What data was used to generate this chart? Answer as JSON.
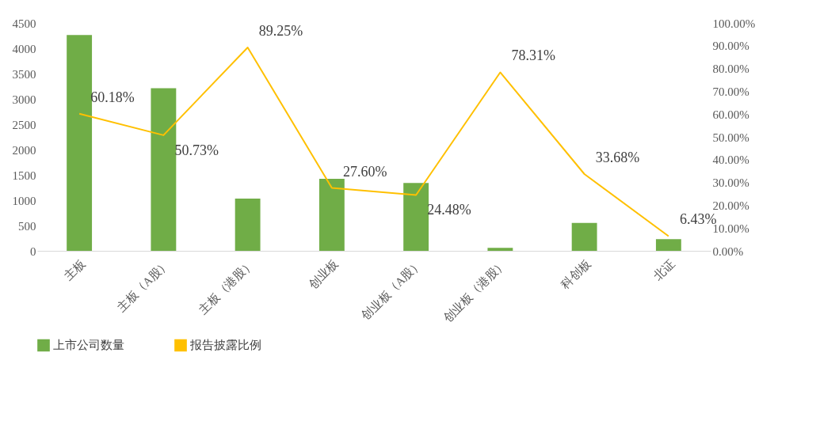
{
  "chart_data": {
    "type": "bar",
    "categories": [
      "主板",
      "主板（A股）",
      "主板（港股）",
      "创业板",
      "创业板（A股）",
      "创业板（港股）",
      "科创板",
      "北证"
    ],
    "series": [
      {
        "name": "上市公司数量",
        "color": "#70ad47",
        "values": [
          4260,
          3210,
          1030,
          1420,
          1340,
          60,
          550,
          230
        ]
      },
      {
        "name": "报告披露比例",
        "type": "line",
        "axis": "y2",
        "color": "#ffc000",
        "values": [
          60.18,
          50.73,
          89.25,
          27.6,
          24.48,
          78.31,
          33.68,
          6.43
        ],
        "value_labels": [
          "60.18%",
          "50.73%",
          "89.25%",
          "27.60%",
          "24.48%",
          "78.31%",
          "33.68%",
          "6.43%"
        ]
      }
    ],
    "ylim": [
      0,
      4500
    ],
    "yticks": [
      0,
      500,
      1000,
      1500,
      2000,
      2500,
      3000,
      3500,
      4000,
      4500
    ],
    "y2lim": [
      0,
      100
    ],
    "y2ticks": [
      {
        "value": 0,
        "label": "0.00%"
      },
      {
        "value": 10,
        "label": "10.00%"
      },
      {
        "value": 20,
        "label": "20.00%"
      },
      {
        "value": 30,
        "label": "30.00%"
      },
      {
        "value": 40,
        "label": "40.00%"
      },
      {
        "value": 50,
        "label": "50.00%"
      },
      {
        "value": 60,
        "label": "60.00%"
      },
      {
        "value": 70,
        "label": "70.00%"
      },
      {
        "value": 80,
        "label": "80.00%"
      },
      {
        "value": 90,
        "label": "90.00%"
      },
      {
        "value": 100,
        "label": "100.00%"
      }
    ],
    "grid": false,
    "legend": "bottom"
  }
}
